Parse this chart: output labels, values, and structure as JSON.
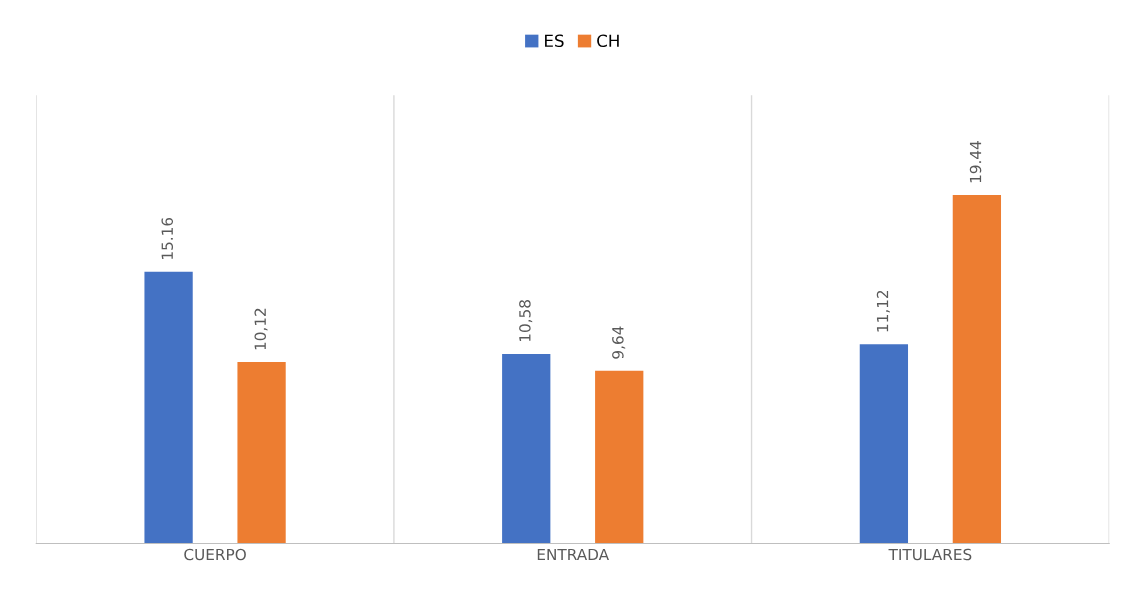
{
  "chart_data": {
    "type": "bar",
    "categories": [
      "CUERPO",
      "ENTRADA",
      "TITULARES"
    ],
    "series": [
      {
        "name": "ES",
        "color": "#4472c4",
        "values": [
          15.16,
          10.58,
          11.12
        ],
        "value_labels": [
          "15.16",
          "10,58",
          "11,12"
        ]
      },
      {
        "name": "CH",
        "color": "#ed7d31",
        "values": [
          10.12,
          9.64,
          19.44
        ],
        "value_labels": [
          "10,12",
          "9,64",
          "19.44"
        ]
      }
    ],
    "ylim": [
      0,
      25
    ],
    "tick_labels": "x",
    "grid": "x",
    "legend": "top"
  }
}
